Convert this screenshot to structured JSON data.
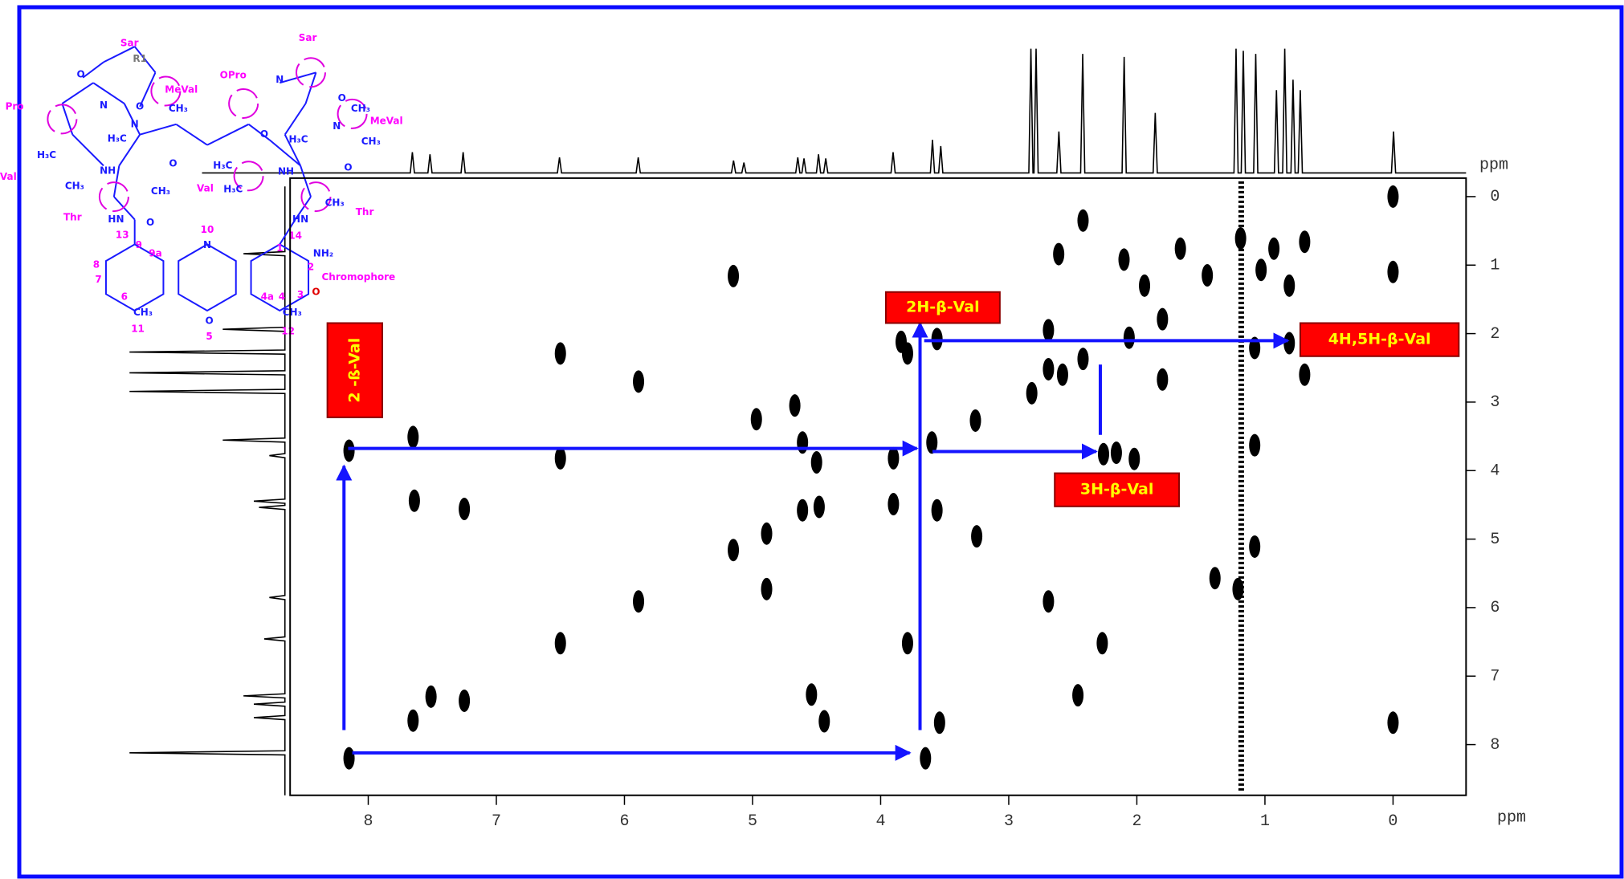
{
  "chart_data": {
    "type": "scatter",
    "x_label": "ppm",
    "y_label": "ppm",
    "xlim": [
      8.61,
      -0.57
    ],
    "ylim": [
      -0.27,
      8.74
    ],
    "xticks": [
      8,
      7,
      6,
      5,
      4,
      3,
      2,
      1,
      0
    ],
    "yticks": [
      0,
      1,
      2,
      3,
      4,
      5,
      6,
      7,
      8
    ],
    "color": "#000000",
    "x": [
      0,
      0,
      0,
      8.15,
      8.15,
      7.65,
      7.64,
      7.65,
      7.51,
      7.25,
      7.25,
      6.5,
      6.5,
      6.5,
      5.89,
      5.89,
      5.15,
      5.15,
      4.97,
      4.89,
      4.89,
      4.67,
      4.61,
      4.61,
      4.54,
      4.5,
      4.48,
      4.44,
      3.84,
      3.79,
      3.9,
      3.9,
      3.79,
      3.65,
      3.6,
      3.56,
      3.56,
      3.54,
      3.26,
      3.25,
      2.82,
      2.69,
      2.69,
      2.61,
      2.69,
      2.58,
      2.42,
      2.42,
      2.27,
      2.26,
      2.16,
      2.1,
      2.06,
      2.02,
      1.94,
      1.8,
      1.8,
      1.66,
      1.45,
      1.19,
      1.08,
      1.08,
      1.08,
      1.03,
      0.81,
      0.81,
      0.69,
      0.69,
      0.93,
      1.39,
      2.46,
      1.21
    ],
    "y": [
      0,
      1.1,
      7.68,
      3.71,
      8.2,
      3.51,
      4.44,
      7.65,
      7.3,
      4.56,
      7.36,
      2.29,
      3.82,
      6.52,
      2.7,
      5.91,
      1.16,
      5.16,
      3.25,
      4.92,
      5.73,
      3.05,
      3.59,
      4.58,
      7.27,
      3.88,
      4.53,
      7.66,
      2.12,
      2.29,
      3.82,
      4.49,
      6.52,
      8.2,
      3.59,
      2.08,
      4.58,
      7.68,
      3.27,
      4.96,
      2.87,
      1.95,
      2.52,
      0.84,
      5.91,
      2.6,
      2.37,
      0.35,
      6.52,
      3.76,
      3.74,
      0.92,
      2.06,
      3.83,
      1.3,
      2.67,
      1.79,
      0.76,
      1.15,
      0.61,
      2.21,
      3.63,
      5.11,
      1.07,
      1.3,
      2.14,
      0.66,
      2.6,
      0.76,
      5.57,
      7.28,
      5.73
    ],
    "annotations": [
      "2H-β-Val",
      "4H,5H-β-Val",
      "3H-β-Val",
      "2 -ß-Val"
    ]
  },
  "structure": {
    "labels": [
      "Sar",
      "R1",
      "Sar",
      "MeVal",
      "OPro",
      "MeVal",
      "Pro",
      "Val",
      "Val",
      "Thr",
      "Thr",
      "Chromophore",
      "NH₂",
      "10",
      "9",
      "9a",
      "8",
      "7",
      "6",
      "5",
      "4a",
      "4",
      "3",
      "2",
      "1",
      "11",
      "12",
      "13",
      "14",
      "O",
      "N",
      "O",
      "N",
      "H₃C",
      "O",
      "NH",
      "H₃C",
      "CH₃",
      "HN",
      "O",
      "CH₃",
      "N",
      "O",
      "N",
      "H₃C",
      "CH₃",
      "CH₃",
      "CH₃",
      "O",
      "NH",
      "H₃C",
      "H₃C",
      "O",
      "HN",
      "CH₃",
      "O",
      "CH₃",
      "CH₃",
      "O",
      "N"
    ]
  }
}
